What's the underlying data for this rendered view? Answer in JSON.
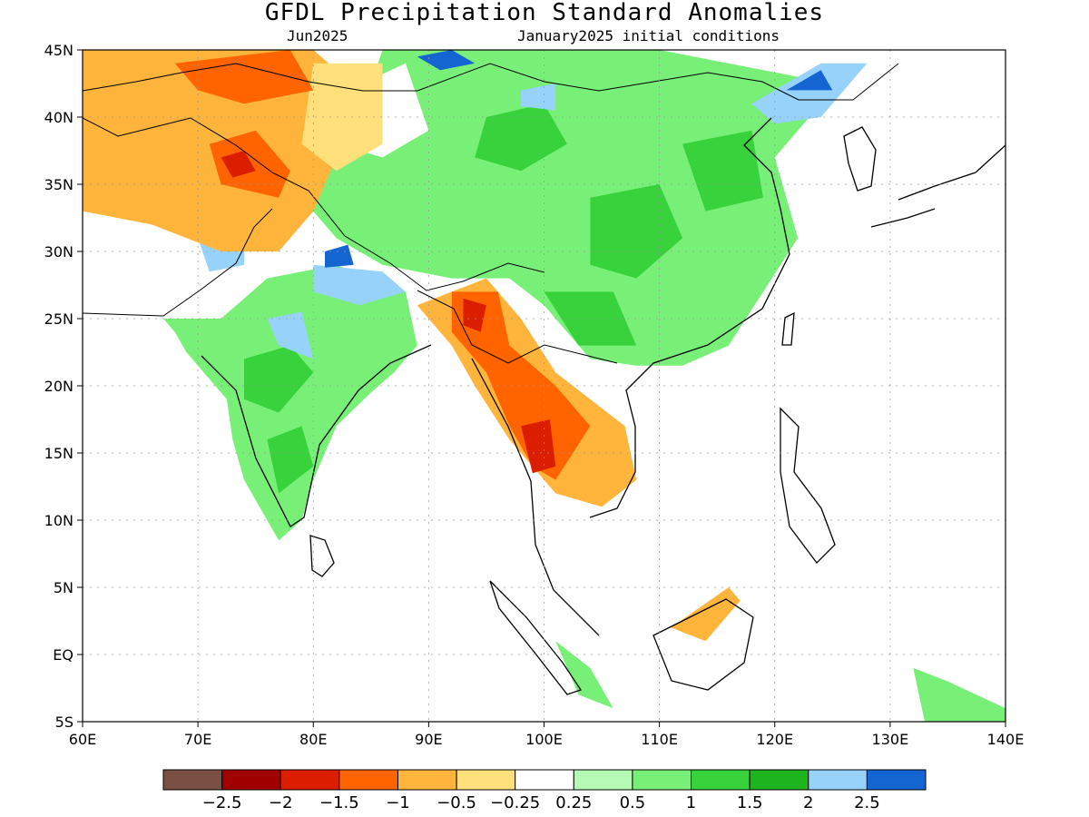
{
  "title": "GFDL Precipitation Standard Anomalies",
  "subtitle_left": "Jun2025",
  "subtitle_right": "January2025 initial conditions",
  "colors": {
    "brown": "#7a5044",
    "dark_red": "#a00000",
    "red": "#dc1e00",
    "orange": "#ff6400",
    "light_orange": "#ffb43c",
    "yellow": "#ffe07a",
    "white": "#ffffff",
    "pale_green": "#b4fab4",
    "light_green": "#78f078",
    "green": "#37d23c",
    "dark_green": "#1eb41e",
    "light_blue": "#96d2fa",
    "blue": "#1464d2"
  },
  "chart_data": {
    "type": "heatmap",
    "x_ticks": [
      "60E",
      "70E",
      "80E",
      "90E",
      "100E",
      "110E",
      "120E",
      "130E",
      "140E"
    ],
    "y_ticks": [
      "45N",
      "40N",
      "35N",
      "30N",
      "25N",
      "20N",
      "15N",
      "10N",
      "5N",
      "EQ",
      "5S"
    ],
    "xlim": [
      60,
      140
    ],
    "ylim": [
      -5,
      45
    ],
    "grid": true,
    "colorbar": {
      "levels": [
        "-2.5",
        "-2",
        "-1.5",
        "-1",
        "-0.5",
        "-0.25",
        "0.25",
        "0.5",
        "1",
        "1.5",
        "2",
        "2.5"
      ],
      "colors": [
        "#7a5044",
        "#a00000",
        "#dc1e00",
        "#ff6400",
        "#ffb43c",
        "#ffe07a",
        "#ffffff",
        "#b4fab4",
        "#78f078",
        "#37d23c",
        "#1eb41e",
        "#96d2fa",
        "#1464d2"
      ]
    },
    "regions": [
      {
        "name": "india-green",
        "lon_lat": [
          [
            67,
            25
          ],
          [
            72,
            25
          ],
          [
            76,
            28
          ],
          [
            82,
            29
          ],
          [
            88,
            27
          ],
          [
            89,
            23
          ],
          [
            87,
            21
          ],
          [
            85,
            19.5
          ],
          [
            82,
            17
          ],
          [
            80,
            13
          ],
          [
            79,
            10
          ],
          [
            77,
            8.5
          ],
          [
            74,
            13
          ],
          [
            73,
            16
          ],
          [
            72.5,
            19
          ],
          [
            71,
            20.5
          ],
          [
            69,
            22.5
          ],
          [
            68,
            24
          ]
        ],
        "level": "light_green"
      },
      {
        "name": "india-dark-green-1",
        "lon_lat": [
          [
            74,
            22
          ],
          [
            78,
            23
          ],
          [
            80,
            21
          ],
          [
            77,
            18
          ],
          [
            74,
            19
          ]
        ],
        "level": "green"
      },
      {
        "name": "india-dark-green-2",
        "lon_lat": [
          [
            76,
            16
          ],
          [
            79,
            17
          ],
          [
            80,
            14
          ],
          [
            77,
            12
          ]
        ],
        "level": "green"
      },
      {
        "name": "india-blue-1",
        "lon_lat": [
          [
            80,
            29
          ],
          [
            86,
            28.5
          ],
          [
            88,
            27
          ],
          [
            84,
            26
          ],
          [
            80,
            27
          ]
        ],
        "level": "light_blue"
      },
      {
        "name": "india-blue-2",
        "lon_lat": [
          [
            76,
            25
          ],
          [
            79,
            25.5
          ],
          [
            80,
            22
          ],
          [
            77,
            23
          ]
        ],
        "level": "light_blue"
      },
      {
        "name": "india-blue-3",
        "lon_lat": [
          [
            70,
            31
          ],
          [
            74,
            31.5
          ],
          [
            74,
            29
          ],
          [
            71,
            28.5
          ]
        ],
        "level": "light_blue"
      },
      {
        "name": "nepal-blue",
        "lon_lat": [
          [
            81,
            30
          ],
          [
            83,
            30.5
          ],
          [
            83.5,
            29
          ],
          [
            81,
            28.8
          ]
        ],
        "level": "blue"
      },
      {
        "name": "china-green",
        "lon_lat": [
          [
            86,
            45
          ],
          [
            110,
            45
          ],
          [
            122,
            43
          ],
          [
            123,
            40
          ],
          [
            120,
            37
          ],
          [
            122,
            31
          ],
          [
            119,
            27
          ],
          [
            116,
            23
          ],
          [
            112,
            21.5
          ],
          [
            108,
            21.5
          ],
          [
            104,
            22
          ],
          [
            100,
            26
          ],
          [
            97,
            28
          ],
          [
            92,
            28
          ],
          [
            86,
            29
          ],
          [
            82,
            31
          ],
          [
            79,
            34
          ],
          [
            80,
            37
          ],
          [
            84,
            40
          ]
        ],
        "level": "light_green"
      },
      {
        "name": "china-dark-1",
        "lon_lat": [
          [
            95,
            40
          ],
          [
            100,
            41
          ],
          [
            102,
            38
          ],
          [
            98,
            36
          ],
          [
            94,
            37
          ]
        ],
        "level": "green"
      },
      {
        "name": "china-dark-2",
        "lon_lat": [
          [
            104,
            34
          ],
          [
            110,
            35
          ],
          [
            112,
            31
          ],
          [
            108,
            28
          ],
          [
            104,
            29
          ]
        ],
        "level": "green"
      },
      {
        "name": "china-dark-3",
        "lon_lat": [
          [
            112,
            38
          ],
          [
            118,
            39
          ],
          [
            119,
            34
          ],
          [
            114,
            33
          ]
        ],
        "level": "green"
      },
      {
        "name": "china-dark-4",
        "lon_lat": [
          [
            100,
            27
          ],
          [
            106,
            27
          ],
          [
            108,
            23
          ],
          [
            103,
            23
          ]
        ],
        "level": "green"
      },
      {
        "name": "mongolia-blue-1",
        "lon_lat": [
          [
            89,
            44.5
          ],
          [
            92,
            45
          ],
          [
            94,
            44
          ],
          [
            91,
            43.5
          ]
        ],
        "level": "blue"
      },
      {
        "name": "mongolia-blue-2",
        "lon_lat": [
          [
            98,
            42
          ],
          [
            101,
            42.5
          ],
          [
            101,
            40.5
          ],
          [
            98,
            40.8
          ]
        ],
        "level": "light_blue"
      },
      {
        "name": "manchuria-blue",
        "lon_lat": [
          [
            118,
            41
          ],
          [
            124,
            44
          ],
          [
            128,
            44
          ],
          [
            124,
            40
          ],
          [
            120,
            39.5
          ]
        ],
        "level": "light_blue"
      },
      {
        "name": "manchuria-blue-dark",
        "lon_lat": [
          [
            121,
            42
          ],
          [
            124,
            43.5
          ],
          [
            125,
            42
          ]
        ],
        "level": "blue"
      },
      {
        "name": "tibet-white",
        "lon_lat": [
          [
            83,
            42
          ],
          [
            88,
            44
          ],
          [
            90,
            39
          ],
          [
            86,
            37
          ],
          [
            82,
            38
          ]
        ],
        "level": "white"
      },
      {
        "name": "central-asia-orange",
        "lon_lat": [
          [
            60,
            45
          ],
          [
            80,
            45
          ],
          [
            84,
            42
          ],
          [
            82,
            37
          ],
          [
            80,
            33
          ],
          [
            77,
            30
          ],
          [
            72,
            30
          ],
          [
            66,
            32
          ],
          [
            60,
            33
          ]
        ],
        "level": "light_orange"
      },
      {
        "name": "central-asia-yellow",
        "lon_lat": [
          [
            80,
            44
          ],
          [
            86,
            44
          ],
          [
            86,
            38
          ],
          [
            82,
            36
          ],
          [
            79,
            38
          ]
        ],
        "level": "yellow"
      },
      {
        "name": "kashmir-red",
        "lon_lat": [
          [
            71,
            38
          ],
          [
            75,
            39
          ],
          [
            78,
            36
          ],
          [
            77,
            34
          ],
          [
            72,
            35
          ]
        ],
        "level": "orange"
      },
      {
        "name": "kashmir-dark",
        "lon_lat": [
          [
            72,
            37
          ],
          [
            74,
            37.5
          ],
          [
            75,
            36
          ],
          [
            73,
            35.5
          ]
        ],
        "level": "red"
      },
      {
        "name": "kazakh-orange",
        "lon_lat": [
          [
            68,
            44
          ],
          [
            78,
            45
          ],
          [
            80,
            42
          ],
          [
            74,
            41
          ],
          [
            70,
            42
          ]
        ],
        "level": "orange"
      },
      {
        "name": "burma-orange",
        "lon_lat": [
          [
            89,
            26
          ],
          [
            95,
            28
          ],
          [
            98,
            25
          ],
          [
            101,
            21
          ],
          [
            107,
            17
          ],
          [
            108,
            13
          ],
          [
            105,
            11
          ],
          [
            101,
            12
          ],
          [
            99,
            14
          ],
          [
            97,
            16
          ],
          [
            94,
            20
          ],
          [
            92,
            23
          ]
        ],
        "level": "light_orange"
      },
      {
        "name": "burma-red",
        "lon_lat": [
          [
            92,
            27
          ],
          [
            96,
            27
          ],
          [
            97,
            23
          ],
          [
            101,
            20
          ],
          [
            104,
            17
          ],
          [
            101,
            13
          ],
          [
            99,
            14
          ],
          [
            97,
            17
          ],
          [
            95,
            21
          ],
          [
            92,
            24
          ]
        ],
        "level": "orange"
      },
      {
        "name": "burma-dark",
        "lon_lat": [
          [
            93,
            26.5
          ],
          [
            95,
            26
          ],
          [
            94.5,
            24
          ],
          [
            93,
            24.5
          ]
        ],
        "level": "red"
      },
      {
        "name": "thai-dark",
        "lon_lat": [
          [
            98,
            17
          ],
          [
            100.5,
            17.5
          ],
          [
            101,
            14
          ],
          [
            99,
            13.5
          ]
        ],
        "level": "red"
      },
      {
        "name": "borneo-orange",
        "lon_lat": [
          [
            111,
            2
          ],
          [
            116,
            5
          ],
          [
            117,
            4
          ],
          [
            114,
            1
          ]
        ],
        "level": "light_orange"
      },
      {
        "name": "sumatra-green",
        "lon_lat": [
          [
            101,
            1
          ],
          [
            104,
            -1
          ],
          [
            106,
            -4
          ],
          [
            103,
            -3
          ]
        ],
        "level": "light_green"
      },
      {
        "name": "newguinea-green",
        "lon_lat": [
          [
            132,
            -1
          ],
          [
            135,
            -2
          ],
          [
            140,
            -4
          ],
          [
            140,
            -5
          ],
          [
            133,
            -5
          ]
        ],
        "level": "light_green"
      }
    ]
  }
}
